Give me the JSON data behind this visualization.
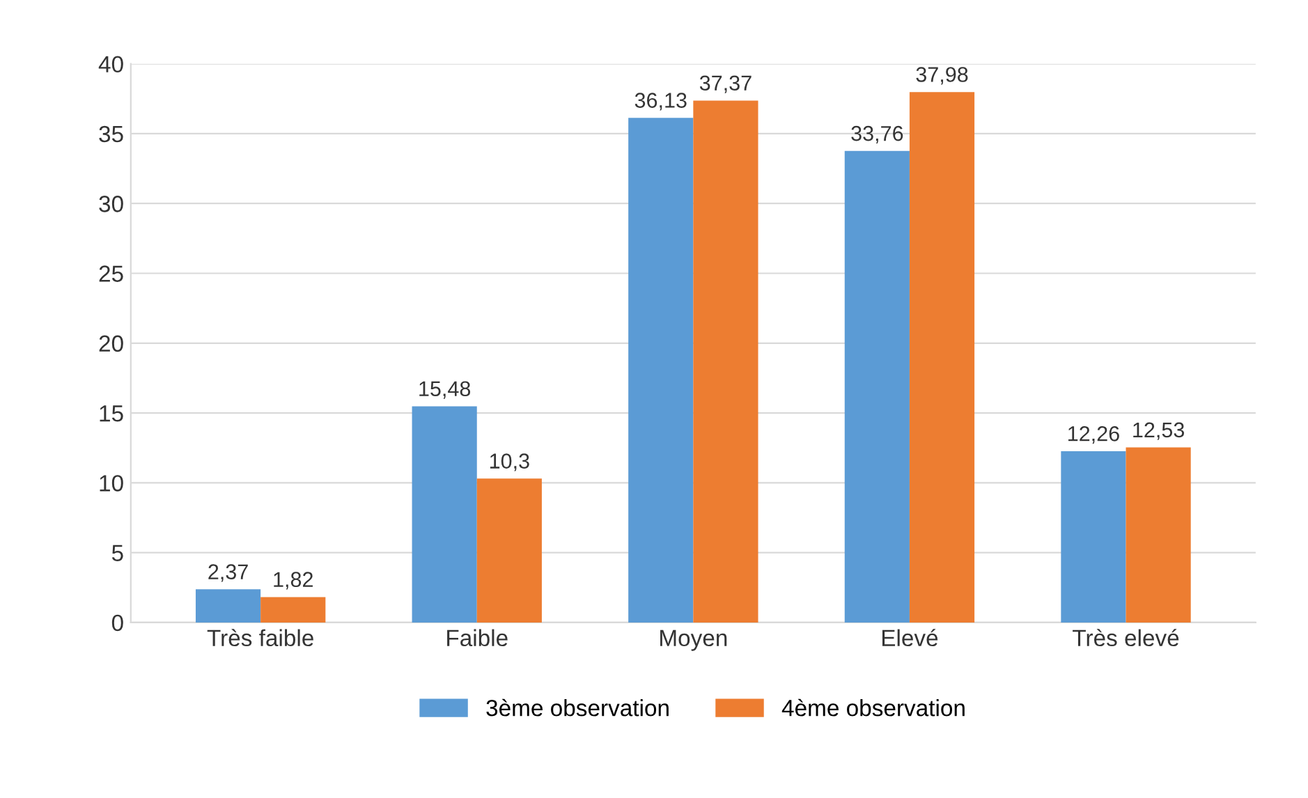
{
  "chart_data": {
    "type": "bar",
    "categories": [
      "Très faible",
      "Faible",
      "Moyen",
      "Elevé",
      "Très elevé"
    ],
    "series": [
      {
        "name": "3ème observation",
        "color": "#5b9bd5",
        "values": [
          2.37,
          15.48,
          36.13,
          33.76,
          12.26
        ],
        "value_labels": [
          "2,37",
          "15,48",
          "36,13",
          "33,76",
          "12,26"
        ]
      },
      {
        "name": "4ème observation",
        "color": "#ed7d31",
        "values": [
          1.82,
          10.3,
          37.37,
          37.98,
          12.53
        ],
        "value_labels": [
          "1,82",
          "10,3",
          "37,37",
          "37,98",
          "12,53"
        ]
      }
    ],
    "ylim": [
      0,
      40
    ],
    "yticks": [
      0,
      5,
      10,
      15,
      20,
      25,
      30,
      35,
      40
    ],
    "grid": "y",
    "legend": "bottom"
  }
}
